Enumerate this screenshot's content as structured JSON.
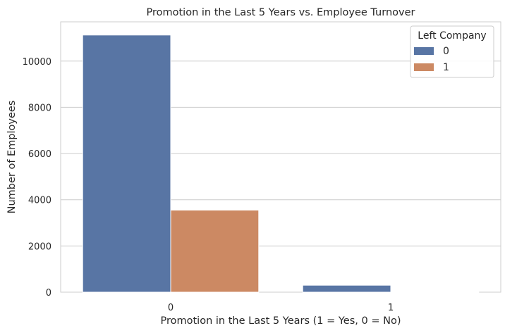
{
  "chart_data": {
    "type": "bar",
    "title": "Promotion in the Last 5 Years vs. Employee Turnover",
    "xlabel": "Promotion in the Last 5 Years (1 = Yes, 0 = No)",
    "ylabel": "Number of Employees",
    "categories": [
      "0",
      "1"
    ],
    "series": [
      {
        "name": "0",
        "color": "#5875a4",
        "values": [
          11128,
          300
        ]
      },
      {
        "name": "1",
        "color": "#cc8963",
        "values": [
          3552,
          19
        ]
      }
    ],
    "ylim": [
      0,
      11700
    ],
    "yticks": [
      0,
      2000,
      4000,
      6000,
      8000,
      10000
    ],
    "grid": true,
    "legend": {
      "title": "Left Company",
      "position": "top-right"
    }
  }
}
